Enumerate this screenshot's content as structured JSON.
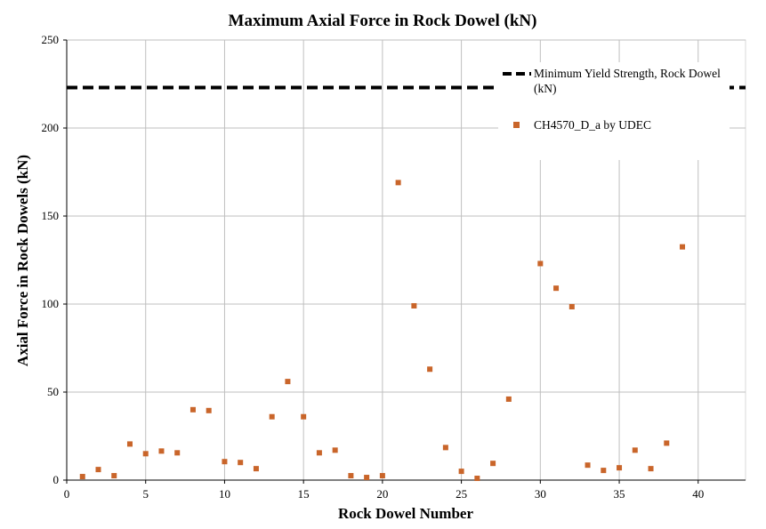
{
  "chart_data": {
    "type": "scatter",
    "title": "Maximum Axial Force in Rock Dowel (kN)",
    "xlabel": "Rock Dowel Number",
    "ylabel": "Axial Force in Rock Dowels (kN)",
    "xlim": [
      0,
      43
    ],
    "ylim": [
      0,
      250
    ],
    "xticks": [
      0,
      5,
      10,
      15,
      20,
      25,
      30,
      35,
      40
    ],
    "yticks": [
      0,
      50,
      100,
      150,
      200,
      250
    ],
    "grid": true,
    "legend_position": "top-right",
    "reference_line": {
      "name_lines": [
        "Minimum Yield Strength, Rock Dowel",
        "(kN)"
      ],
      "y": 223,
      "style": "dashed",
      "color": "#000000"
    },
    "series": [
      {
        "name": "CH4570_D_a by UDEC",
        "color": "#c9652a",
        "marker": "square",
        "x": [
          1,
          2,
          3,
          4,
          5,
          6,
          7,
          8,
          9,
          10,
          11,
          12,
          13,
          14,
          15,
          16,
          17,
          18,
          19,
          20,
          21,
          22,
          23,
          24,
          25,
          26,
          27,
          28,
          29,
          30,
          31,
          32,
          33,
          34,
          35,
          36,
          37,
          38,
          39
        ],
        "y": [
          2,
          6,
          2.5,
          20.5,
          15,
          16.5,
          15.5,
          40,
          39.5,
          10.5,
          10,
          6.5,
          36,
          56,
          36,
          15.5,
          17,
          2.5,
          1.5,
          2.5,
          169,
          99,
          63,
          18.5,
          5,
          1,
          9.5,
          46,
          null,
          123,
          109,
          98.5,
          8.5,
          5.5,
          7,
          17,
          6.5,
          21,
          132.5
        ]
      }
    ]
  }
}
